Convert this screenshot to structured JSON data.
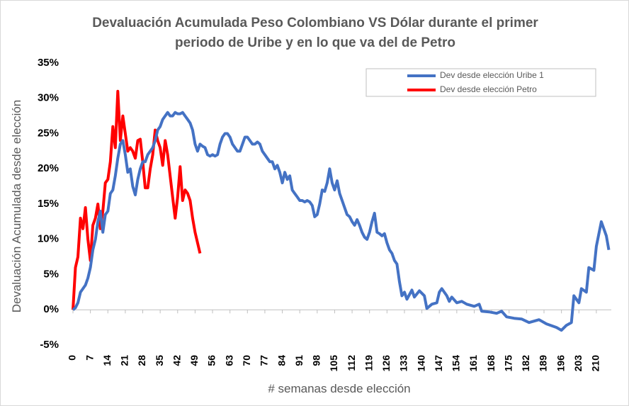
{
  "chart_data": {
    "type": "line",
    "title": "Devaluación Acumulada Peso Colombiano VS Dólar durante el  primer periodo de Uribe y en lo que va del de Petro",
    "x_label": "# semanas desde elección",
    "y_label": "Devaluación Acumulada desde elección",
    "xlim": [
      0,
      216
    ],
    "xticks": [
      0,
      7,
      14,
      21,
      28,
      35,
      42,
      49,
      56,
      63,
      70,
      77,
      84,
      91,
      98,
      105,
      112,
      119,
      126,
      133,
      140,
      147,
      154,
      161,
      168,
      175,
      182,
      189,
      196,
      203,
      210
    ],
    "ylim": [
      -5,
      35
    ],
    "yticks": [
      {
        "value": -5,
        "label": "-5%"
      },
      {
        "value": 0,
        "label": "0%"
      },
      {
        "value": 5,
        "label": "5%"
      },
      {
        "value": 10,
        "label": "10%"
      },
      {
        "value": 15,
        "label": "15%"
      },
      {
        "value": 20,
        "label": "20%"
      },
      {
        "value": 25,
        "label": "25%"
      },
      {
        "value": 30,
        "label": "30%"
      },
      {
        "value": 35,
        "label": "35%"
      }
    ],
    "grid": false,
    "legend": "upper right",
    "series": [
      {
        "name": "Dev desde elección Uribe 1",
        "color": "#4472c4",
        "x": [
          0,
          1,
          2,
          3,
          4,
          5,
          6,
          7,
          8,
          9,
          10,
          11,
          12,
          13,
          14,
          15,
          16,
          17,
          18,
          19,
          20,
          21,
          22,
          23,
          24,
          25,
          26,
          27,
          28,
          29,
          30,
          31,
          32,
          33,
          34,
          35,
          36,
          37,
          38,
          39,
          40,
          41,
          42,
          43,
          44,
          45,
          46,
          47,
          48,
          49,
          50,
          51,
          52,
          53,
          54,
          55,
          56,
          57,
          58,
          59,
          60,
          61,
          62,
          63,
          64,
          65,
          66,
          67,
          68,
          69,
          70,
          71,
          72,
          73,
          74,
          75,
          76,
          77,
          78,
          79,
          80,
          81,
          82,
          83,
          84,
          85,
          86,
          87,
          88,
          89,
          90,
          91,
          92,
          93,
          94,
          95,
          96,
          97,
          98,
          99,
          100,
          101,
          102,
          103,
          104,
          105,
          106,
          107,
          108,
          109,
          110,
          111,
          112,
          113,
          114,
          115,
          116,
          117,
          118,
          119,
          120,
          121,
          122,
          123,
          124,
          125,
          126,
          127,
          128,
          129,
          130,
          131,
          132,
          133,
          134,
          136,
          137,
          139,
          141,
          142,
          144,
          146,
          147,
          148,
          150,
          151,
          152,
          154,
          156,
          158,
          161,
          163,
          164,
          167,
          170,
          172,
          174,
          177,
          180,
          183,
          187,
          190,
          194,
          196,
          198,
          200,
          201,
          203,
          204,
          206,
          207,
          209,
          210,
          212,
          214,
          215
        ],
        "values": [
          0,
          0.3,
          1,
          2.5,
          3,
          3.5,
          4.5,
          6,
          8.5,
          10,
          12.5,
          14,
          11,
          13.5,
          14,
          16.5,
          17,
          19,
          21.5,
          23.5,
          24,
          22,
          19.5,
          20,
          17.5,
          16.3,
          18.5,
          20,
          21,
          21,
          22,
          22.5,
          23,
          24,
          25.5,
          26,
          27,
          27.5,
          28,
          27.5,
          27.5,
          28,
          27.8,
          27.8,
          28,
          27.5,
          27,
          26.5,
          25.5,
          23.5,
          22.5,
          23.5,
          23.2,
          23,
          22,
          21.8,
          22,
          21.8,
          22,
          23.5,
          24.5,
          25,
          25,
          24.5,
          23.5,
          23,
          22.5,
          22.5,
          23.5,
          24.5,
          24.5,
          24,
          23.5,
          23.5,
          23.8,
          23.5,
          22.5,
          22,
          21.5,
          21,
          21,
          20,
          20.5,
          19.5,
          18,
          19.5,
          18.5,
          19,
          17,
          16.5,
          16,
          15.5,
          15.5,
          15.3,
          15.5,
          15.3,
          14.8,
          13.2,
          13.5,
          15,
          17,
          16.8,
          18,
          20,
          18,
          17,
          18.3,
          16.5,
          15.5,
          14.5,
          13.5,
          13.2,
          12.5,
          12,
          12.8,
          12,
          11,
          10.3,
          10,
          11,
          12.5,
          13.7,
          11,
          10.8,
          10.5,
          10.8,
          9.5,
          8.5,
          8,
          7,
          6.5,
          4,
          2,
          2.5,
          1.5,
          2.8,
          1.8,
          2.7,
          2,
          0.2,
          0.8,
          1,
          2.5,
          3,
          2,
          1.2,
          1.8,
          1,
          1.2,
          0.8,
          0.5,
          0.8,
          -0.2,
          -0.3,
          -0.5,
          -0.2,
          -1,
          -1.2,
          -1.3,
          -1.8,
          -1.4,
          -2,
          -2.5,
          -2.9,
          -2.2,
          -1.8,
          2,
          1,
          3,
          2.5,
          6,
          5.6,
          9,
          12.5,
          10.5,
          8.5
        ]
      },
      {
        "name": "Dev desde elección Petro",
        "color": "#ff0000",
        "x": [
          0,
          1,
          2,
          3,
          4,
          5,
          6,
          7,
          8,
          9,
          10,
          11,
          12,
          13,
          14,
          15,
          16,
          17,
          18,
          19,
          20,
          21,
          22,
          23,
          24,
          25,
          26,
          27,
          28,
          29,
          30,
          31,
          32,
          33,
          34,
          35,
          36,
          37,
          38,
          39,
          40,
          41,
          42,
          43,
          44,
          45,
          46,
          47,
          48,
          49,
          50,
          51
        ],
        "values": [
          0,
          6,
          7.5,
          13,
          11.5,
          14.5,
          10,
          7,
          12,
          13,
          15,
          11.5,
          14,
          18,
          18.5,
          21,
          26,
          23,
          31,
          24,
          27.5,
          25,
          22.5,
          23,
          22.5,
          21.5,
          24,
          24.2,
          21,
          17.3,
          17.3,
          20,
          22,
          25.5,
          24,
          23,
          20.5,
          24,
          22,
          19,
          16,
          13,
          16,
          20.3,
          15.5,
          17,
          16.5,
          15.5,
          13,
          11,
          9.5,
          8
        ]
      }
    ]
  }
}
